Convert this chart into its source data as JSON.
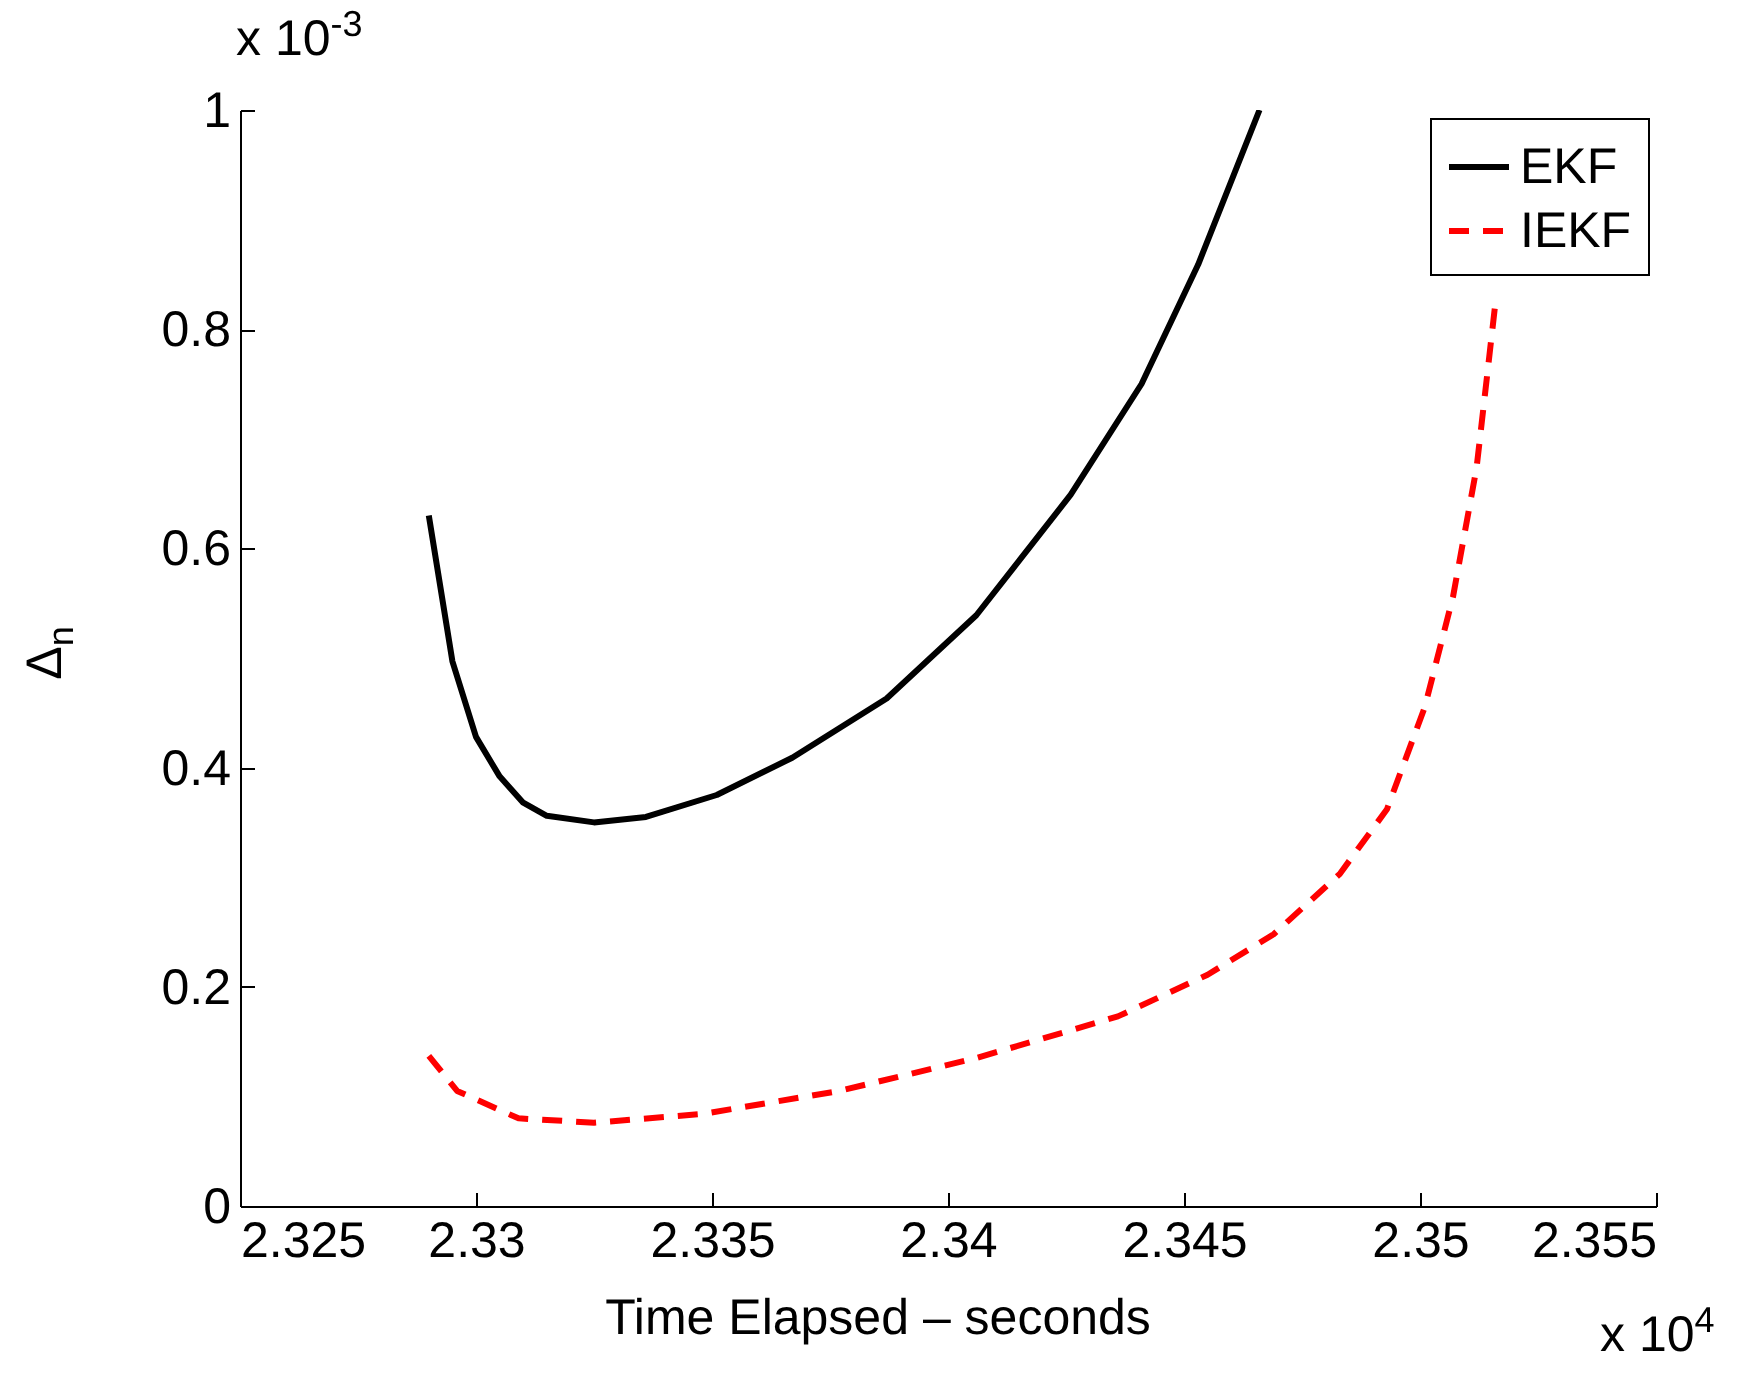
{
  "chart_data": {
    "type": "line",
    "xlabel": "Time Elapsed – seconds",
    "ylabel": "Δ$_{n}$",
    "xlim": [
      2.325,
      2.355
    ],
    "xticks": [
      2.325,
      2.33,
      2.335,
      2.34,
      2.345,
      2.35,
      2.355
    ],
    "ylim": [
      0,
      1
    ],
    "yticks": [
      0,
      0.2,
      0.4,
      0.6,
      0.8,
      1
    ],
    "annotations": [
      "x 10$^{-3}$",
      "x 10$^{4}$"
    ],
    "legend": "top right",
    "grid": false,
    "marker": "none",
    "series": [
      {
        "name": "EKF",
        "color": "#000000",
        "line_style": "solid",
        "x": [
          2.329,
          2.3295,
          2.33,
          2.3305,
          2.331,
          2.3315,
          2.3325,
          2.3336,
          2.3351,
          2.3367,
          2.3387,
          2.3406,
          2.3426,
          2.3441,
          2.3453,
          2.3466
        ],
        "values": [
          0.63,
          0.497,
          0.428,
          0.392,
          0.368,
          0.356,
          0.35,
          0.355,
          0.375,
          0.409,
          0.463,
          0.539,
          0.649,
          0.75,
          0.859,
          1.0
        ]
      },
      {
        "name": "IEKF",
        "color": "#ff0000",
        "line_style": "dashed",
        "x": [
          2.329,
          2.3296,
          2.3309,
          2.3325,
          2.3348,
          2.3377,
          2.3406,
          2.3436,
          2.3455,
          2.3469,
          2.3483,
          2.3493,
          2.3501,
          2.3507,
          2.3512,
          2.3516
        ],
        "values": [
          0.137,
          0.105,
          0.08,
          0.076,
          0.084,
          0.105,
          0.135,
          0.173,
          0.211,
          0.248,
          0.303,
          0.362,
          0.455,
          0.556,
          0.674,
          0.825
        ]
      }
    ]
  }
}
